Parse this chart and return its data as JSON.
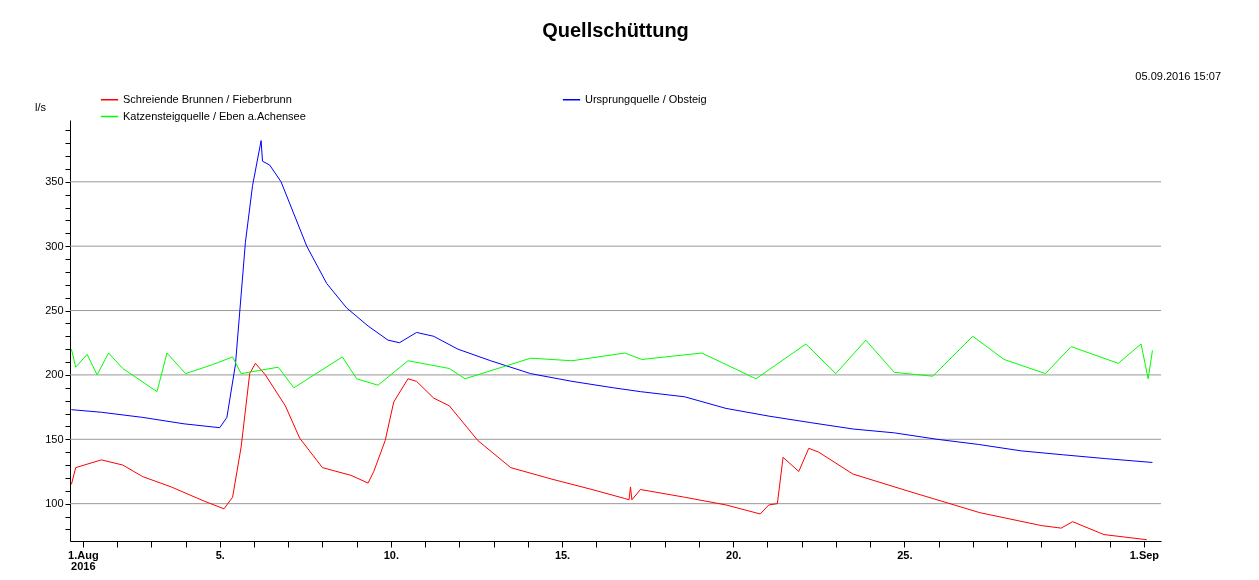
{
  "chart_data": {
    "type": "line",
    "title": "Quellschüttung",
    "ylabel": "l/s",
    "annotations": [
      "05.09.2016 15:07"
    ],
    "xlim": [
      "2016-07-31T15:00",
      "2016-09-01T12:00"
    ],
    "ylim": [
      71,
      398
    ],
    "xticks": [
      {
        "value": "2016-08-01",
        "label": "1.Aug\n2016"
      },
      {
        "value": "2016-08-02",
        "label": null
      },
      {
        "value": "2016-08-03",
        "label": null
      },
      {
        "value": "2016-08-04",
        "label": null
      },
      {
        "value": "2016-08-05",
        "label": "5."
      },
      {
        "value": "2016-08-06",
        "label": null
      },
      {
        "value": "2016-08-07",
        "label": null
      },
      {
        "value": "2016-08-08",
        "label": null
      },
      {
        "value": "2016-08-09",
        "label": null
      },
      {
        "value": "2016-08-10",
        "label": "10."
      },
      {
        "value": "2016-08-11",
        "label": null
      },
      {
        "value": "2016-08-12",
        "label": null
      },
      {
        "value": "2016-08-13",
        "label": null
      },
      {
        "value": "2016-08-14",
        "label": null
      },
      {
        "value": "2016-08-15",
        "label": "15."
      },
      {
        "value": "2016-08-16",
        "label": null
      },
      {
        "value": "2016-08-17",
        "label": null
      },
      {
        "value": "2016-08-18",
        "label": null
      },
      {
        "value": "2016-08-19",
        "label": null
      },
      {
        "value": "2016-08-20",
        "label": "20."
      },
      {
        "value": "2016-08-21",
        "label": null
      },
      {
        "value": "2016-08-22",
        "label": null
      },
      {
        "value": "2016-08-23",
        "label": null
      },
      {
        "value": "2016-08-24",
        "label": null
      },
      {
        "value": "2016-08-25",
        "label": "25."
      },
      {
        "value": "2016-08-26",
        "label": null
      },
      {
        "value": "2016-08-27",
        "label": null
      },
      {
        "value": "2016-08-28",
        "label": null
      },
      {
        "value": "2016-08-29",
        "label": null
      },
      {
        "value": "2016-08-30",
        "label": null
      },
      {
        "value": "2016-08-31",
        "label": null
      },
      {
        "value": "2016-09-01",
        "label": "1.Sep"
      }
    ],
    "yticks": [
      {
        "value": 80,
        "label": null
      },
      {
        "value": 90,
        "label": null
      },
      100,
      {
        "value": 110,
        "label": null
      },
      {
        "value": 120,
        "label": null
      },
      {
        "value": 130,
        "label": null
      },
      {
        "value": 140,
        "label": null
      },
      150,
      {
        "value": 160,
        "label": null
      },
      {
        "value": 170,
        "label": null
      },
      {
        "value": 180,
        "label": null
      },
      {
        "value": 190,
        "label": null
      },
      200,
      {
        "value": 210,
        "label": null
      },
      {
        "value": 220,
        "label": null
      },
      {
        "value": 230,
        "label": null
      },
      {
        "value": 240,
        "label": null
      },
      250,
      {
        "value": 260,
        "label": null
      },
      {
        "value": 270,
        "label": null
      },
      {
        "value": 280,
        "label": null
      },
      {
        "value": 290,
        "label": null
      },
      300,
      {
        "value": 310,
        "label": null
      },
      {
        "value": 320,
        "label": null
      },
      {
        "value": 330,
        "label": null
      },
      {
        "value": 340,
        "label": null
      },
      350,
      {
        "value": 360,
        "label": null
      },
      {
        "value": 370,
        "label": null
      },
      {
        "value": 380,
        "label": null
      },
      {
        "value": 390,
        "label": null
      }
    ],
    "grid": "y",
    "legend": "top",
    "marker": "none",
    "line_style": "solid",
    "series": [
      {
        "name": "Schreiende Brunnen  / Fieberbrunn",
        "color": "#ff0000",
        "x": [
          "2016-07-31T16:00",
          "2016-07-31T19:00",
          "2016-08-01T13:00",
          "2016-08-02T04:00",
          "2016-08-02T18:00",
          "2016-08-03T14:00",
          "2016-08-04T13:00",
          "2016-08-05T03:00",
          "2016-08-05T09:00",
          "2016-08-05T15:00",
          "2016-08-05T21:00",
          "2016-08-06T01:00",
          "2016-08-06T08:00",
          "2016-08-06T22:00",
          "2016-08-07T08:00",
          "2016-08-08T00:00",
          "2016-08-08T20:00",
          "2016-08-09T08:00",
          "2016-08-09T12:00",
          "2016-08-09T20:00",
          "2016-08-10T02:00",
          "2016-08-10T12:00",
          "2016-08-10T18:00",
          "2016-08-11T06:00",
          "2016-08-11T17:00",
          "2016-08-12T13:00",
          "2016-08-13T12:00",
          "2016-08-14T17:00",
          "2016-08-15T21:00",
          "2016-08-16T20:00",
          "2016-08-16T23:00",
          "2016-08-17T00:00",
          "2016-08-17T01:00",
          "2016-08-17T07:00",
          "2016-08-18T14:00",
          "2016-08-19T19:00",
          "2016-08-20T19:00",
          "2016-08-21T01:00",
          "2016-08-21T07:00",
          "2016-08-21T11:00",
          "2016-08-21T22:00",
          "2016-08-22T05:00",
          "2016-08-22T12:00",
          "2016-08-23T12:00",
          "2016-08-25T02:00",
          "2016-08-27T05:00",
          "2016-08-29T00:00",
          "2016-08-29T14:00",
          "2016-08-29T22:00",
          "2016-08-30T20:00",
          "2016-09-01T02:00"
        ],
        "values": [
          115,
          128,
          134,
          130,
          121,
          113,
          102,
          96,
          105,
          144,
          201,
          209,
          200,
          176,
          151,
          128,
          122,
          116,
          125,
          149,
          179,
          197,
          195,
          182,
          176,
          149,
          128,
          119,
          111,
          104,
          103,
          113,
          103,
          111,
          105,
          99,
          92,
          99,
          100,
          136,
          125,
          143,
          140,
          123,
          110,
          93,
          83,
          81,
          86,
          76,
          72
        ]
      },
      {
        "name": "Ursprungquelle  / Obsteig",
        "color": "#0000ff",
        "x": [
          "2016-07-31T16:00",
          "2016-08-01T13:00",
          "2016-08-02T18:00",
          "2016-08-03T23:00",
          "2016-08-05T00:00",
          "2016-08-05T05:00",
          "2016-08-05T11:00",
          "2016-08-05T18:00",
          "2016-08-05T23:00",
          "2016-08-06T05:00",
          "2016-08-06T06:00",
          "2016-08-06T11:00",
          "2016-08-06T19:00",
          "2016-08-07T04:00",
          "2016-08-07T13:00",
          "2016-08-08T03:00",
          "2016-08-08T17:00",
          "2016-08-09T08:00",
          "2016-08-09T22:00",
          "2016-08-10T06:00",
          "2016-08-10T18:00",
          "2016-08-11T06:00",
          "2016-08-11T23:00",
          "2016-08-12T22:00",
          "2016-08-14T02:00",
          "2016-08-15T07:00",
          "2016-08-16T12:00",
          "2016-08-17T07:00",
          "2016-08-18T14:00",
          "2016-08-19T19:00",
          "2016-08-21T01:00",
          "2016-08-22T06:00",
          "2016-08-23T12:00",
          "2016-08-24T17:00",
          "2016-08-25T23:00",
          "2016-08-27T04:00",
          "2016-08-28T10:00",
          "2016-08-29T15:00",
          "2016-08-30T21:00",
          "2016-09-01T06:00"
        ],
        "values": [
          173,
          171,
          167,
          162,
          159,
          167,
          208,
          303,
          347,
          382,
          366,
          363,
          350,
          325,
          300,
          271,
          252,
          238,
          227,
          225,
          233,
          230,
          220,
          211,
          201,
          195,
          190,
          187,
          183,
          174,
          168,
          163,
          158,
          155,
          150,
          146,
          141,
          138,
          135,
          132
        ]
      },
      {
        "name": "Katzensteigquelle  / Eben a.Achensee",
        "color": "#00ff00",
        "x": [
          "2016-07-31T16:00",
          "2016-07-31T19:00",
          "2016-08-01T03:00",
          "2016-08-01T10:00",
          "2016-08-01T18:00",
          "2016-08-02T04:00",
          "2016-08-03T04:00",
          "2016-08-03T11:00",
          "2016-08-04T00:00",
          "2016-08-04T19:00",
          "2016-08-05T09:00",
          "2016-08-05T15:00",
          "2016-08-06T17:00",
          "2016-08-07T04:00",
          "2016-08-08T14:00",
          "2016-08-09T00:00",
          "2016-08-09T15:00",
          "2016-08-10T12:00",
          "2016-08-11T17:00",
          "2016-08-12T04:00",
          "2016-08-14T02:00",
          "2016-08-15T07:00",
          "2016-08-16T20:00",
          "2016-08-17T08:00",
          "2016-08-19T02:00",
          "2016-08-20T16:00",
          "2016-08-22T03:00",
          "2016-08-23T00:00",
          "2016-08-23T21:00",
          "2016-08-24T17:00",
          "2016-08-25T20:00",
          "2016-08-27T00:00",
          "2016-08-27T22:00",
          "2016-08-29T03:00",
          "2016-08-29T21:00",
          "2016-08-31T06:00",
          "2016-08-31T22:00",
          "2016-09-01T03:00",
          "2016-09-01T06:00"
        ],
        "values": [
          220,
          206,
          216,
          200,
          217,
          205,
          187,
          217,
          201,
          208,
          214,
          201,
          206,
          190,
          214,
          197,
          192,
          211,
          205,
          197,
          213,
          211,
          217,
          212,
          217,
          197,
          224,
          201,
          227,
          202,
          199,
          230,
          212,
          201,
          222,
          209,
          224,
          197,
          219
        ]
      }
    ]
  }
}
